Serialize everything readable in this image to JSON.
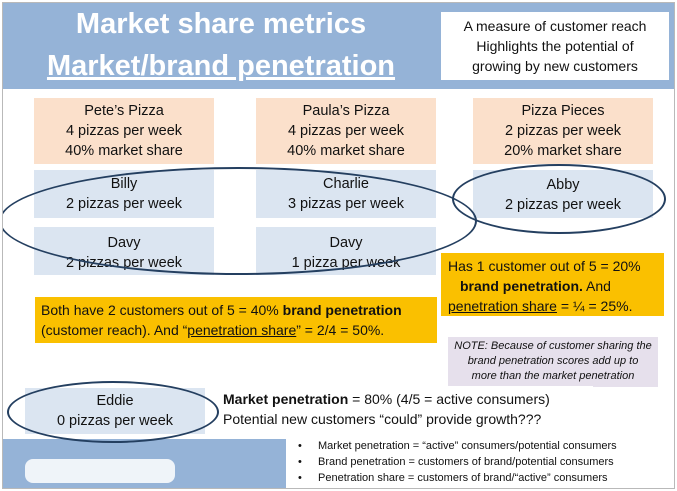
{
  "slide": {
    "title_line1": "Market share metrics",
    "title_line2": "Market/brand penetration",
    "header_note": [
      "A measure of customer reach",
      "Highlights the potential of",
      "growing by new customers"
    ]
  },
  "brands": [
    {
      "name": "Pete’s Pizza",
      "volume": "4 pizzas per week",
      "share": "40% market share"
    },
    {
      "name": "Paula’s Pizza",
      "volume": "4 pizzas per week",
      "share": "40% market share"
    },
    {
      "name": "Pizza Pieces",
      "volume": "2 pizzas per week",
      "share": "20% market share"
    }
  ],
  "customers": {
    "billy": {
      "name": "Billy",
      "volume": "2 pizzas per week"
    },
    "charlie": {
      "name": "Charlie",
      "volume": "3 pizzas per week"
    },
    "abby": {
      "name": "Abby",
      "volume": "2 pizzas per week"
    },
    "davy_1": {
      "name": "Davy",
      "volume": "2 pizzas per week"
    },
    "davy_2": {
      "name": "Davy",
      "volume": "1 pizza per week"
    },
    "eddie": {
      "name": "Eddie",
      "volume": "0 pizzas per week"
    }
  },
  "callouts": {
    "pizza_pieces": {
      "line1": "Has 1 customer out of 5 = 20%",
      "line2_bold": "brand penetration.",
      "line2_rest": " And",
      "line3_underline": "penetration share",
      "line3_rest": " = ¼ = 25%."
    },
    "both": {
      "part1": "Both have 2 customers out of 5 = 40% ",
      "bold": "brand penetration",
      "part2": "(customer reach). And “",
      "underline": "penetration share",
      "part3": "” = 2/4 = 50%."
    }
  },
  "note": [
    "NOTE: Because of customer sharing the",
    "brand penetration scores add up to",
    "more than the market penetration"
  ],
  "market_penetration": {
    "bold": "Market penetration",
    "rest": " = 80% (4/5 = active consumers)",
    "line2": "Potential new customers “could” provide growth???"
  },
  "definitions": [
    "Market penetration = “active” consumers/potential consumers",
    "Brand penetration = customers of brand/potential consumers",
    "Penetration share = customers of brand/“active” consumers"
  ],
  "colors": {
    "band": "#95b3d7",
    "brand_box": "#fbe0cb",
    "customer_box": "#dbe5f1",
    "callout": "#fac000",
    "note": "#e6e0ec",
    "oval": "#243f60"
  }
}
